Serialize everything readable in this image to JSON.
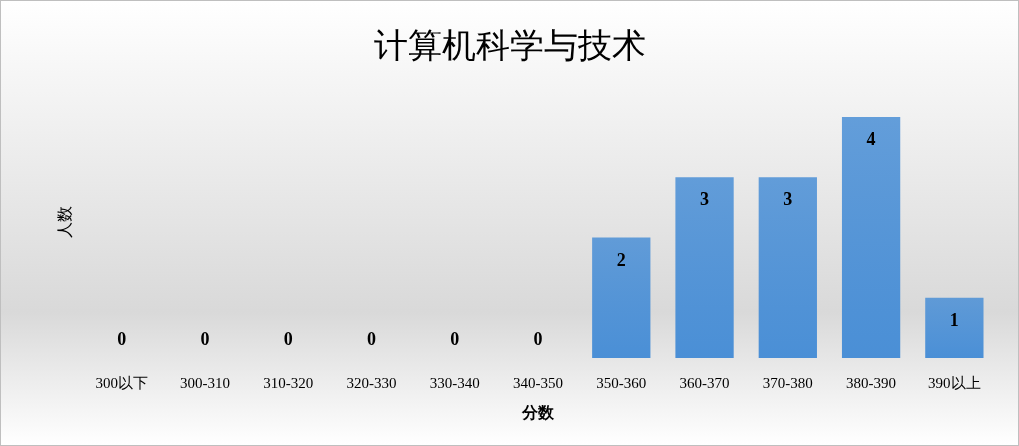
{
  "chart_data": {
    "type": "bar",
    "title": "计算机科学与技术",
    "xlabel": "分数",
    "ylabel": "人数",
    "categories": [
      "300以下",
      "300-310",
      "310-320",
      "320-330",
      "330-340",
      "340-350",
      "350-360",
      "360-370",
      "370-380",
      "380-390",
      "390以上"
    ],
    "values": [
      0,
      0,
      0,
      0,
      0,
      0,
      2,
      3,
      3,
      4,
      1
    ],
    "color": "#4a8fd6",
    "data_labels": true
  }
}
